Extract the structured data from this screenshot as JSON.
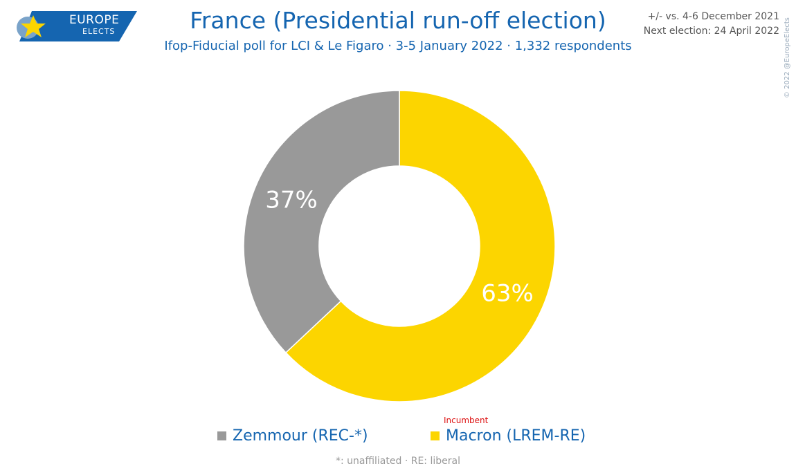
{
  "logo": {
    "line1": "EUROPE",
    "line2": "ELECTS"
  },
  "header": {
    "title": "France (Presidential run-off election)",
    "subtitle": "Ifop-Fiducial poll for LCI & Le Figaro · 3-5 January 2022 · 1,332 respondents",
    "comparison": "+/- vs. 4-6 December 2021",
    "next_election": "Next election: 24 April 2022",
    "copyright": "© 2022 @EuropeElects"
  },
  "chart_data": {
    "type": "pie",
    "variant": "donut",
    "title": "France (Presidential run-off election)",
    "slices": [
      {
        "name": "Macron (LREM-RE)",
        "value": 63,
        "label": "63%",
        "color": "#fcd500"
      },
      {
        "name": "Zemmour (REC-*)",
        "value": 37,
        "label": "37%",
        "color": "#999999"
      }
    ]
  },
  "legend": {
    "items": [
      {
        "label": "Zemmour (REC-*)",
        "color": "#999999"
      },
      {
        "label": "Macron (LREM-RE)",
        "color": "#fcd500",
        "note": "Incumbent"
      }
    ]
  },
  "footnote": "*: unaffiliated · RE: liberal"
}
